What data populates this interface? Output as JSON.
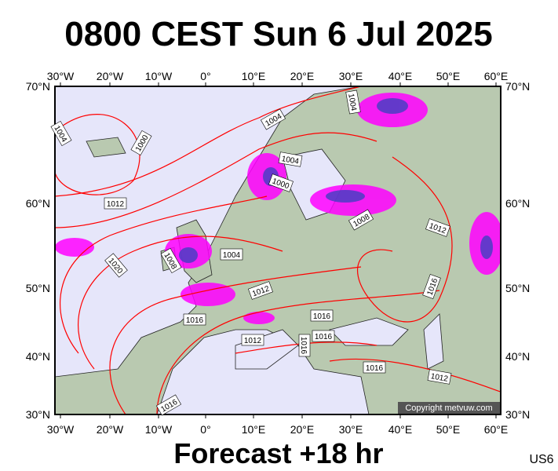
{
  "header": {
    "title": "0800 CEST Sun 6 Jul 2025"
  },
  "map": {
    "lon_labels": [
      "30°W",
      "20°W",
      "10°W",
      "0°",
      "10°E",
      "20°E",
      "30°E",
      "40°E",
      "50°E",
      "60°E"
    ],
    "lat_labels": [
      "70°N",
      "60°N",
      "50°N",
      "40°N",
      "30°N"
    ],
    "isobar_labels": [
      "1004",
      "1004",
      "1004",
      "1000",
      "1004",
      "1000",
      "1012",
      "1008",
      "1012",
      "1004",
      "1020",
      "1008",
      "1012",
      "1016",
      "1016",
      "1016",
      "1016",
      "1012",
      "1016",
      "1016",
      "1012",
      "1016"
    ],
    "copyright": "Copyright metvuw.com"
  },
  "footer": {
    "forecast": "Forecast +18 hr",
    "code": "US6"
  }
}
